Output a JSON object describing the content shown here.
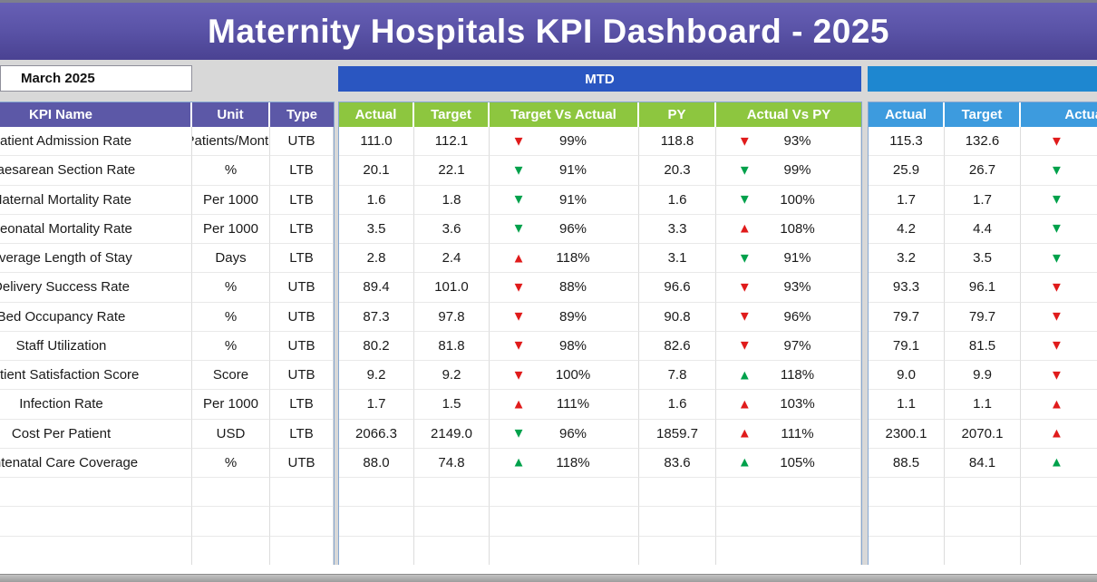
{
  "title": "Maternity Hospitals KPI Dashboard - 2025",
  "period_selector": {
    "value": "March 2025"
  },
  "left_table": {
    "headers": {
      "name": "KPI Name",
      "unit": "Unit",
      "type": "Type"
    }
  },
  "mtd_section": {
    "title": "MTD",
    "headers": {
      "actual": "Actual",
      "target": "Target",
      "tva": "Target Vs Actual",
      "py": "PY",
      "avp": "Actual Vs PY"
    }
  },
  "right_section": {
    "title": "",
    "headers": {
      "actual": "Actual",
      "target": "Target",
      "avt": "Actual Vs Target"
    }
  },
  "colors": {
    "red": "#e01b1b",
    "green": "#00a14b",
    "purple_header": "#5c58a7",
    "green_header": "#8dc63f",
    "mtd_blue": "#2a56c1",
    "right_blue": "#1e87d0",
    "right_header_blue": "#3d9bde"
  },
  "empty_row_count": 3,
  "rows": [
    {
      "name": "Patient Admission Rate",
      "unit": "Patients/Month",
      "type": "UTB",
      "mtd": {
        "actual": "111.0",
        "target": "112.1",
        "tva": {
          "arrow": "▼",
          "color": "red",
          "pct": "99%"
        },
        "py": "118.8",
        "avp": {
          "arrow": "▼",
          "color": "red",
          "pct": "93%"
        }
      },
      "ytd": {
        "actual": "115.3",
        "target": "132.6",
        "avt": {
          "arrow": "▼",
          "color": "red"
        }
      }
    },
    {
      "name": "Caesarean Section Rate",
      "unit": "%",
      "type": "LTB",
      "mtd": {
        "actual": "20.1",
        "target": "22.1",
        "tva": {
          "arrow": "▼",
          "color": "green",
          "pct": "91%"
        },
        "py": "20.3",
        "avp": {
          "arrow": "▼",
          "color": "green",
          "pct": "99%"
        }
      },
      "ytd": {
        "actual": "25.9",
        "target": "26.7",
        "avt": {
          "arrow": "▼",
          "color": "green"
        }
      }
    },
    {
      "name": "Maternal Mortality Rate",
      "unit": "Per 1000",
      "type": "LTB",
      "mtd": {
        "actual": "1.6",
        "target": "1.8",
        "tva": {
          "arrow": "▼",
          "color": "green",
          "pct": "91%"
        },
        "py": "1.6",
        "avp": {
          "arrow": "▼",
          "color": "green",
          "pct": "100%"
        }
      },
      "ytd": {
        "actual": "1.7",
        "target": "1.7",
        "avt": {
          "arrow": "▼",
          "color": "green"
        }
      }
    },
    {
      "name": "Neonatal Mortality Rate",
      "unit": "Per 1000",
      "type": "LTB",
      "mtd": {
        "actual": "3.5",
        "target": "3.6",
        "tva": {
          "arrow": "▼",
          "color": "green",
          "pct": "96%"
        },
        "py": "3.3",
        "avp": {
          "arrow": "▲",
          "color": "red",
          "pct": "108%"
        }
      },
      "ytd": {
        "actual": "4.2",
        "target": "4.4",
        "avt": {
          "arrow": "▼",
          "color": "green"
        }
      }
    },
    {
      "name": "Average Length of Stay",
      "unit": "Days",
      "type": "LTB",
      "mtd": {
        "actual": "2.8",
        "target": "2.4",
        "tva": {
          "arrow": "▲",
          "color": "red",
          "pct": "118%"
        },
        "py": "3.1",
        "avp": {
          "arrow": "▼",
          "color": "green",
          "pct": "91%"
        }
      },
      "ytd": {
        "actual": "3.2",
        "target": "3.5",
        "avt": {
          "arrow": "▼",
          "color": "green"
        }
      }
    },
    {
      "name": "Delivery Success Rate",
      "unit": "%",
      "type": "UTB",
      "mtd": {
        "actual": "89.4",
        "target": "101.0",
        "tva": {
          "arrow": "▼",
          "color": "red",
          "pct": "88%"
        },
        "py": "96.6",
        "avp": {
          "arrow": "▼",
          "color": "red",
          "pct": "93%"
        }
      },
      "ytd": {
        "actual": "93.3",
        "target": "96.1",
        "avt": {
          "arrow": "▼",
          "color": "red"
        }
      }
    },
    {
      "name": "Bed Occupancy Rate",
      "unit": "%",
      "type": "UTB",
      "mtd": {
        "actual": "87.3",
        "target": "97.8",
        "tva": {
          "arrow": "▼",
          "color": "red",
          "pct": "89%"
        },
        "py": "90.8",
        "avp": {
          "arrow": "▼",
          "color": "red",
          "pct": "96%"
        }
      },
      "ytd": {
        "actual": "79.7",
        "target": "79.7",
        "avt": {
          "arrow": "▼",
          "color": "red"
        }
      }
    },
    {
      "name": "Staff Utilization",
      "unit": "%",
      "type": "UTB",
      "mtd": {
        "actual": "80.2",
        "target": "81.8",
        "tva": {
          "arrow": "▼",
          "color": "red",
          "pct": "98%"
        },
        "py": "82.6",
        "avp": {
          "arrow": "▼",
          "color": "red",
          "pct": "97%"
        }
      },
      "ytd": {
        "actual": "79.1",
        "target": "81.5",
        "avt": {
          "arrow": "▼",
          "color": "red"
        }
      }
    },
    {
      "name": "Patient Satisfaction Score",
      "unit": "Score",
      "type": "UTB",
      "mtd": {
        "actual": "9.2",
        "target": "9.2",
        "tva": {
          "arrow": "▼",
          "color": "red",
          "pct": "100%"
        },
        "py": "7.8",
        "avp": {
          "arrow": "▲",
          "color": "green",
          "pct": "118%"
        }
      },
      "ytd": {
        "actual": "9.0",
        "target": "9.9",
        "avt": {
          "arrow": "▼",
          "color": "red"
        }
      }
    },
    {
      "name": "Infection Rate",
      "unit": "Per 1000",
      "type": "LTB",
      "mtd": {
        "actual": "1.7",
        "target": "1.5",
        "tva": {
          "arrow": "▲",
          "color": "red",
          "pct": "111%"
        },
        "py": "1.6",
        "avp": {
          "arrow": "▲",
          "color": "red",
          "pct": "103%"
        }
      },
      "ytd": {
        "actual": "1.1",
        "target": "1.1",
        "avt": {
          "arrow": "▲",
          "color": "red"
        }
      }
    },
    {
      "name": "Cost Per Patient",
      "unit": "USD",
      "type": "LTB",
      "mtd": {
        "actual": "2066.3",
        "target": "2149.0",
        "tva": {
          "arrow": "▼",
          "color": "green",
          "pct": "96%"
        },
        "py": "1859.7",
        "avp": {
          "arrow": "▲",
          "color": "red",
          "pct": "111%"
        }
      },
      "ytd": {
        "actual": "2300.1",
        "target": "2070.1",
        "avt": {
          "arrow": "▲",
          "color": "red"
        }
      }
    },
    {
      "name": "Antenatal Care Coverage",
      "unit": "%",
      "type": "UTB",
      "mtd": {
        "actual": "88.0",
        "target": "74.8",
        "tva": {
          "arrow": "▲",
          "color": "green",
          "pct": "118%"
        },
        "py": "83.6",
        "avp": {
          "arrow": "▲",
          "color": "green",
          "pct": "105%"
        }
      },
      "ytd": {
        "actual": "88.5",
        "target": "84.1",
        "avt": {
          "arrow": "▲",
          "color": "green"
        }
      }
    }
  ]
}
